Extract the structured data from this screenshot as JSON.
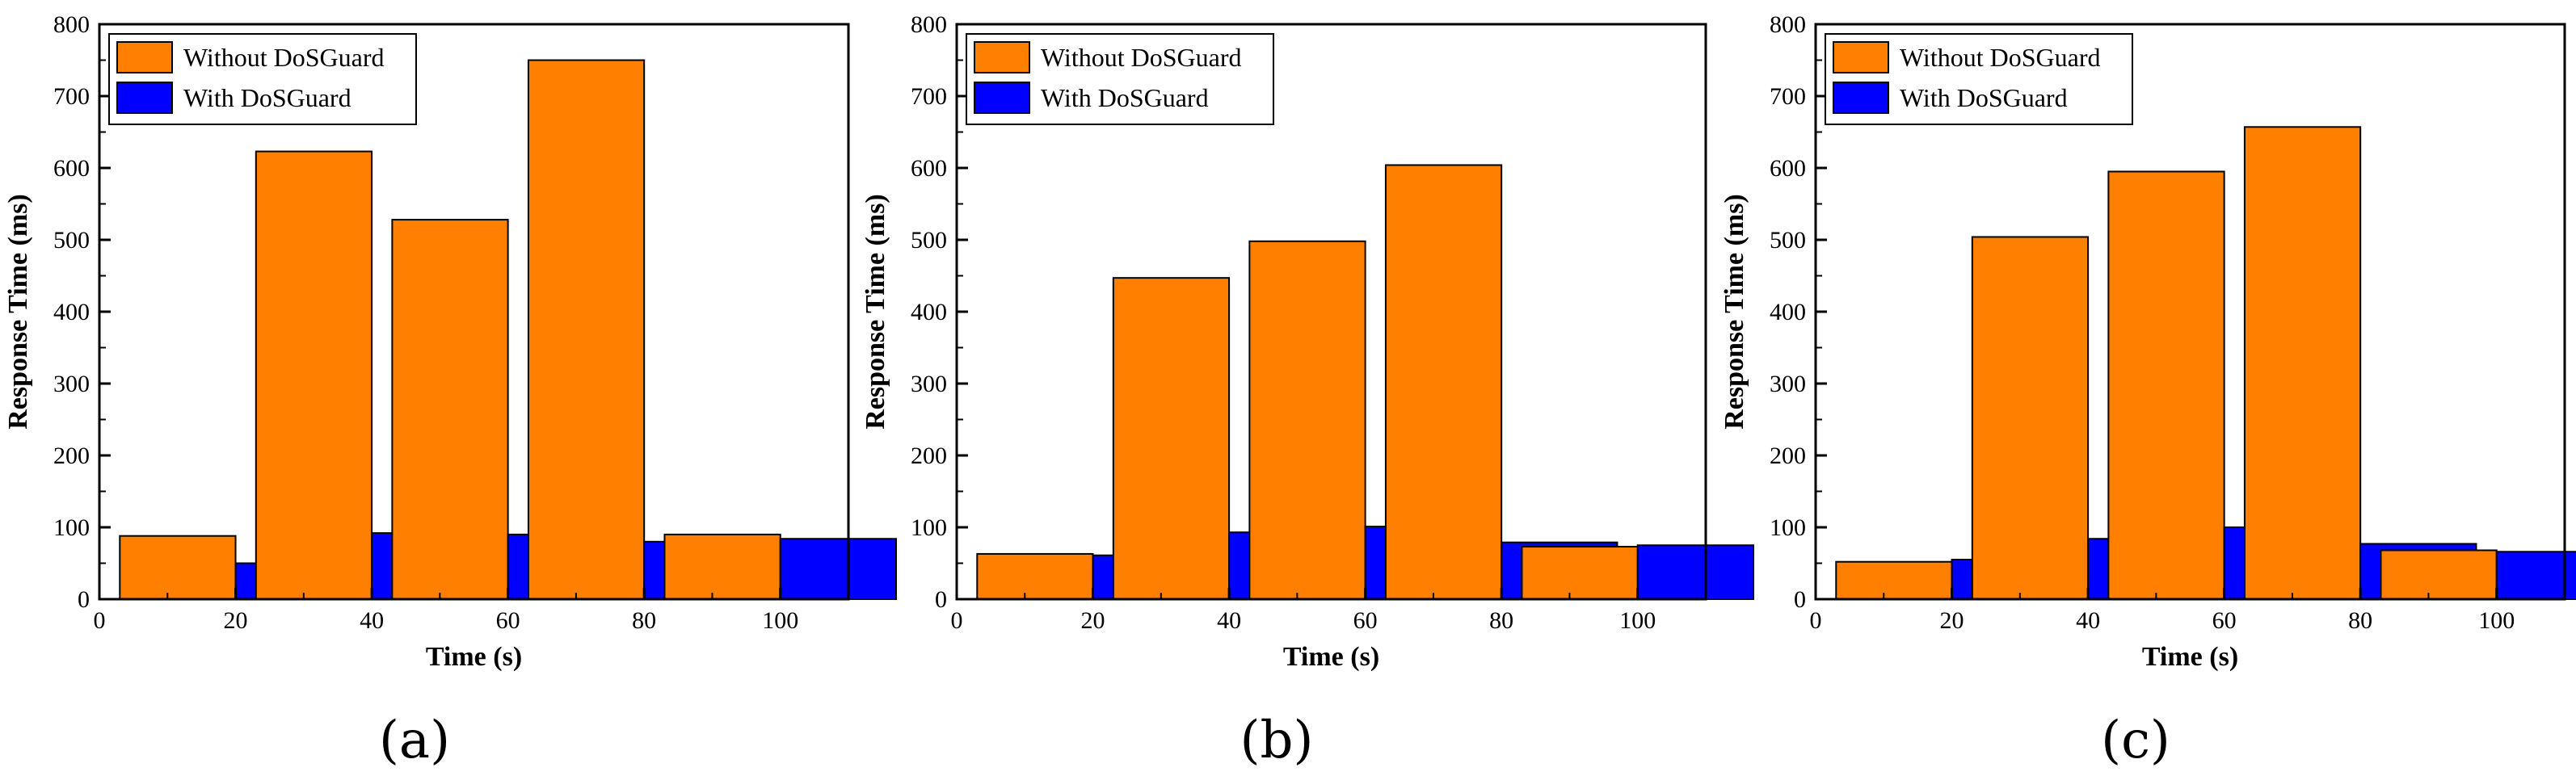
{
  "figure": {
    "colors": {
      "without": "#ff8000",
      "with": "#0000ff",
      "axis": "#000000"
    },
    "panel_labels": [
      "(a)",
      "(b)",
      "(c)"
    ]
  },
  "chart_data": [
    {
      "type": "bar",
      "categories": [
        20,
        40,
        60,
        80,
        100
      ],
      "series": [
        {
          "name": "Without DoSGuard",
          "values": [
            88,
            623,
            528,
            750,
            90
          ]
        },
        {
          "name": "With DoSGuard",
          "values": [
            50,
            92,
            90,
            80,
            84
          ]
        }
      ],
      "xlabel": "Time (s)",
      "ylabel": "Response Time (ms)",
      "xlim": [
        0,
        110
      ],
      "ylim": [
        0,
        800
      ],
      "xticks": [
        0,
        20,
        40,
        60,
        80,
        100
      ],
      "yticks": [
        0,
        100,
        200,
        300,
        400,
        500,
        600,
        700,
        800
      ],
      "legend": "top-left"
    },
    {
      "type": "bar",
      "categories": [
        20,
        40,
        60,
        80,
        100
      ],
      "series": [
        {
          "name": "Without DoSGuard",
          "values": [
            63,
            447,
            498,
            604,
            73
          ]
        },
        {
          "name": "With DoSGuard",
          "values": [
            61,
            93,
            101,
            79,
            75
          ]
        }
      ],
      "xlabel": "Time (s)",
      "ylabel": "Response Time (ms)",
      "xlim": [
        0,
        110
      ],
      "ylim": [
        0,
        800
      ],
      "xticks": [
        0,
        20,
        40,
        60,
        80,
        100
      ],
      "yticks": [
        0,
        100,
        200,
        300,
        400,
        500,
        600,
        700,
        800
      ],
      "legend": "top-left"
    },
    {
      "type": "bar",
      "categories": [
        20,
        40,
        60,
        80,
        100
      ],
      "series": [
        {
          "name": "Without DoSGuard",
          "values": [
            52,
            504,
            595,
            657,
            68
          ]
        },
        {
          "name": "With DoSGuard",
          "values": [
            55,
            84,
            100,
            77,
            66
          ]
        }
      ],
      "xlabel": "Time (s)",
      "ylabel": "Response Time (ms)",
      "xlim": [
        0,
        110
      ],
      "ylim": [
        0,
        800
      ],
      "xticks": [
        0,
        20,
        40,
        60,
        80,
        100
      ],
      "yticks": [
        0,
        100,
        200,
        300,
        400,
        500,
        600,
        700,
        800
      ],
      "legend": "top-left"
    }
  ]
}
